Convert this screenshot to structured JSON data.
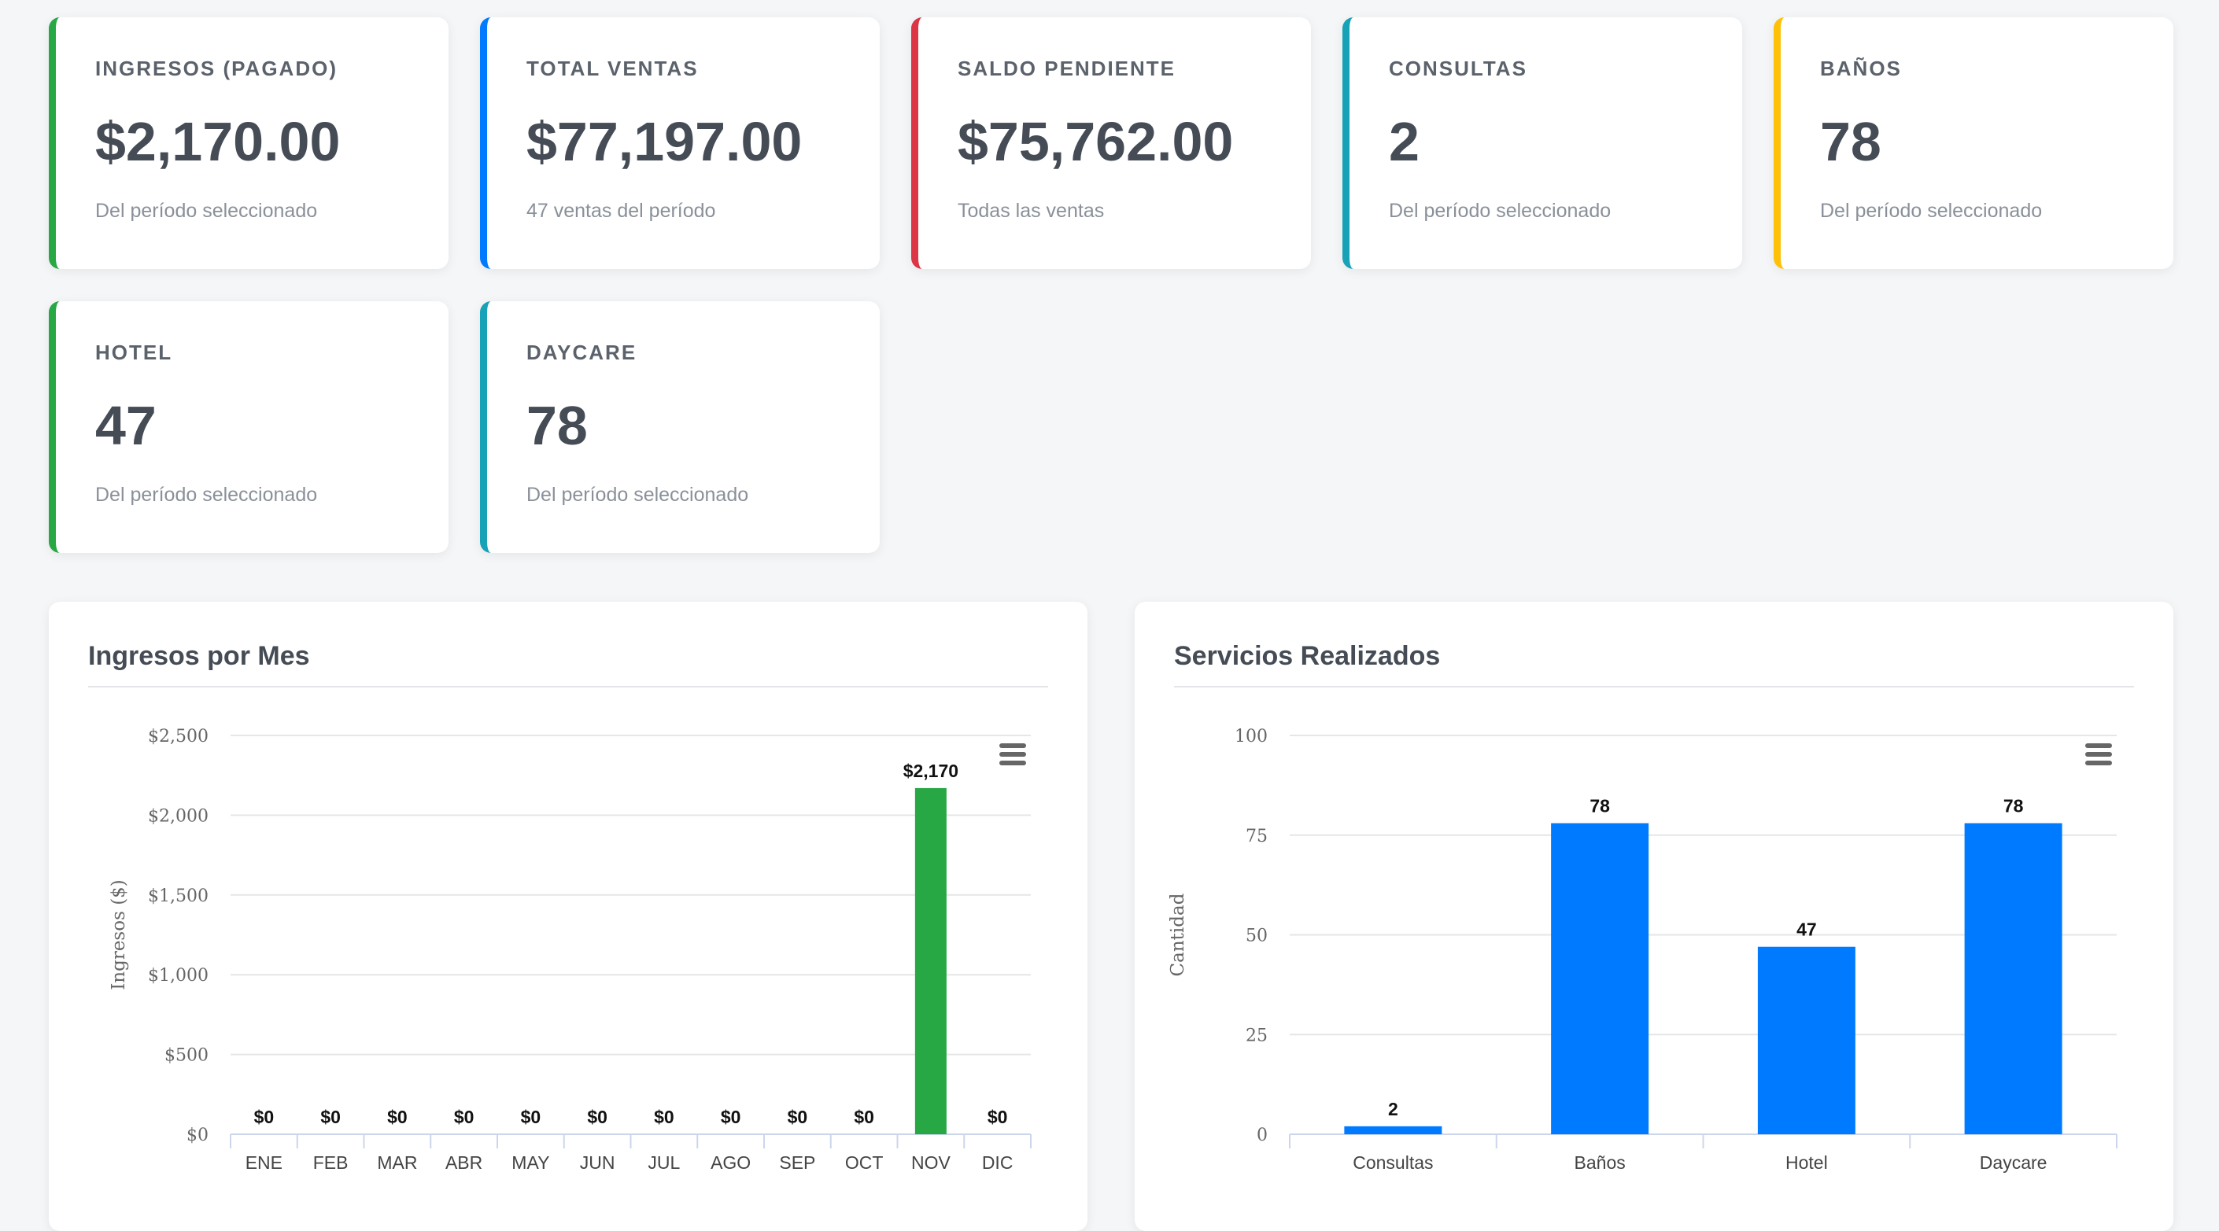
{
  "cards": [
    {
      "label": "INGRESOS (PAGADO)",
      "value": "$2,170.00",
      "sub": "Del período seleccionado",
      "color": "#28a745"
    },
    {
      "label": "TOTAL VENTAS",
      "value": "$77,197.00",
      "sub": "47 ventas del período",
      "color": "#007bff"
    },
    {
      "label": "SALDO PENDIENTE",
      "value": "$75,762.00",
      "sub": "Todas las ventas",
      "color": "#dc3545"
    },
    {
      "label": "CONSULTAS",
      "value": "2",
      "sub": "Del período seleccionado",
      "color": "#17a2b8"
    },
    {
      "label": "BAÑOS",
      "value": "78",
      "sub": "Del período seleccionado",
      "color": "#ffc107"
    },
    {
      "label": "HOTEL",
      "value": "47",
      "sub": "Del período seleccionado",
      "color": "#28a745"
    },
    {
      "label": "DAYCARE",
      "value": "78",
      "sub": "Del período seleccionado",
      "color": "#17a2b8"
    }
  ],
  "panels": {
    "income_title": "Ingresos por Mes",
    "services_title": "Servicios Realizados",
    "menu_icon": "hamburger-menu-icon"
  },
  "chart_data": [
    {
      "type": "bar",
      "title": "Ingresos por Mes",
      "ylabel": "Ingresos ($)",
      "xlabel": "",
      "categories": [
        "ENE",
        "FEB",
        "MAR",
        "ABR",
        "MAY",
        "JUN",
        "JUL",
        "AGO",
        "SEP",
        "OCT",
        "NOV",
        "DIC"
      ],
      "values": [
        0,
        0,
        0,
        0,
        0,
        0,
        0,
        0,
        0,
        0,
        2170,
        0
      ],
      "data_labels": [
        "$0",
        "$0",
        "$0",
        "$0",
        "$0",
        "$0",
        "$0",
        "$0",
        "$0",
        "$0",
        "$2,170",
        "$0"
      ],
      "yticks": [
        0,
        500,
        1000,
        1500,
        2000,
        2500
      ],
      "ytick_labels": [
        "$0",
        "$500",
        "$1,000",
        "$1,500",
        "$2,000",
        "$2,500"
      ],
      "ylim": [
        0,
        2500
      ],
      "color": "#28a745",
      "grid": true,
      "legend": false
    },
    {
      "type": "bar",
      "title": "Servicios Realizados",
      "ylabel": "Cantidad",
      "xlabel": "",
      "categories": [
        "Consultas",
        "Baños",
        "Hotel",
        "Daycare"
      ],
      "values": [
        2,
        78,
        47,
        78
      ],
      "data_labels": [
        "2",
        "78",
        "47",
        "78"
      ],
      "yticks": [
        0,
        25,
        50,
        75,
        100
      ],
      "ytick_labels": [
        "0",
        "25",
        "50",
        "75",
        "100"
      ],
      "ylim": [
        0,
        100
      ],
      "color": "#007bff",
      "grid": true,
      "legend": false
    }
  ]
}
